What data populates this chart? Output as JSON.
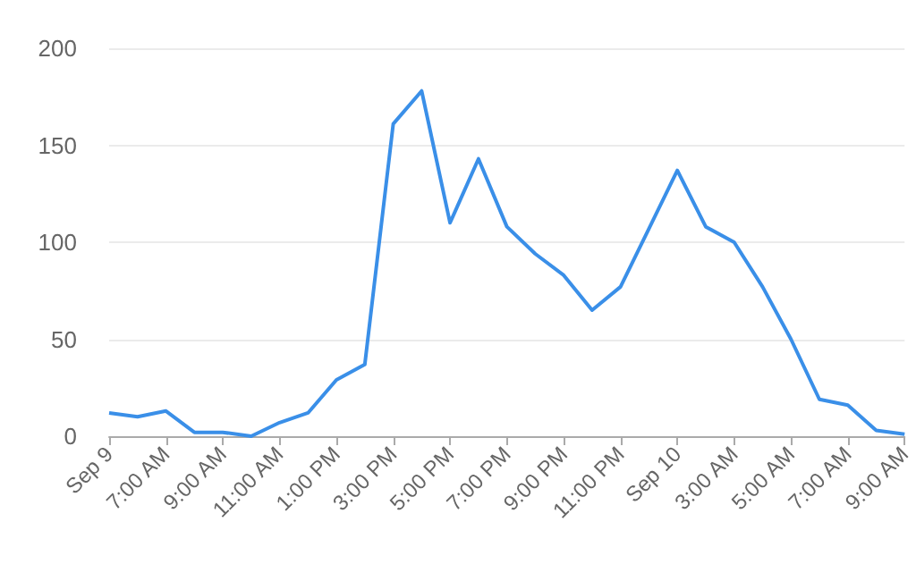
{
  "chart_data": {
    "type": "line",
    "categories": [
      "Sep 9",
      null,
      "7:00 AM",
      null,
      "9:00 AM",
      null,
      "11:00 AM",
      null,
      "1:00 PM",
      null,
      "3:00 PM",
      null,
      "5:00 PM",
      null,
      "7:00 PM",
      null,
      "9:00 PM",
      null,
      "11:00 PM",
      null,
      "Sep 10",
      null,
      "3:00 AM",
      null,
      "5:00 AM",
      null,
      "7:00 AM",
      null,
      "9:00 AM"
    ],
    "series": [
      {
        "color": "#3a8fe8",
        "values": [
          12,
          10,
          13,
          2,
          2,
          0,
          7,
          12,
          29,
          37,
          161,
          178,
          110,
          143,
          108,
          94,
          83,
          65,
          77,
          107,
          137,
          108,
          100,
          77,
          50,
          19,
          16,
          3,
          1
        ]
      }
    ],
    "ylim": [
      0,
      200
    ],
    "yticks": [
      0,
      50,
      100,
      150,
      200
    ],
    "grid": "y",
    "marker": "none",
    "line_style": "solid"
  }
}
